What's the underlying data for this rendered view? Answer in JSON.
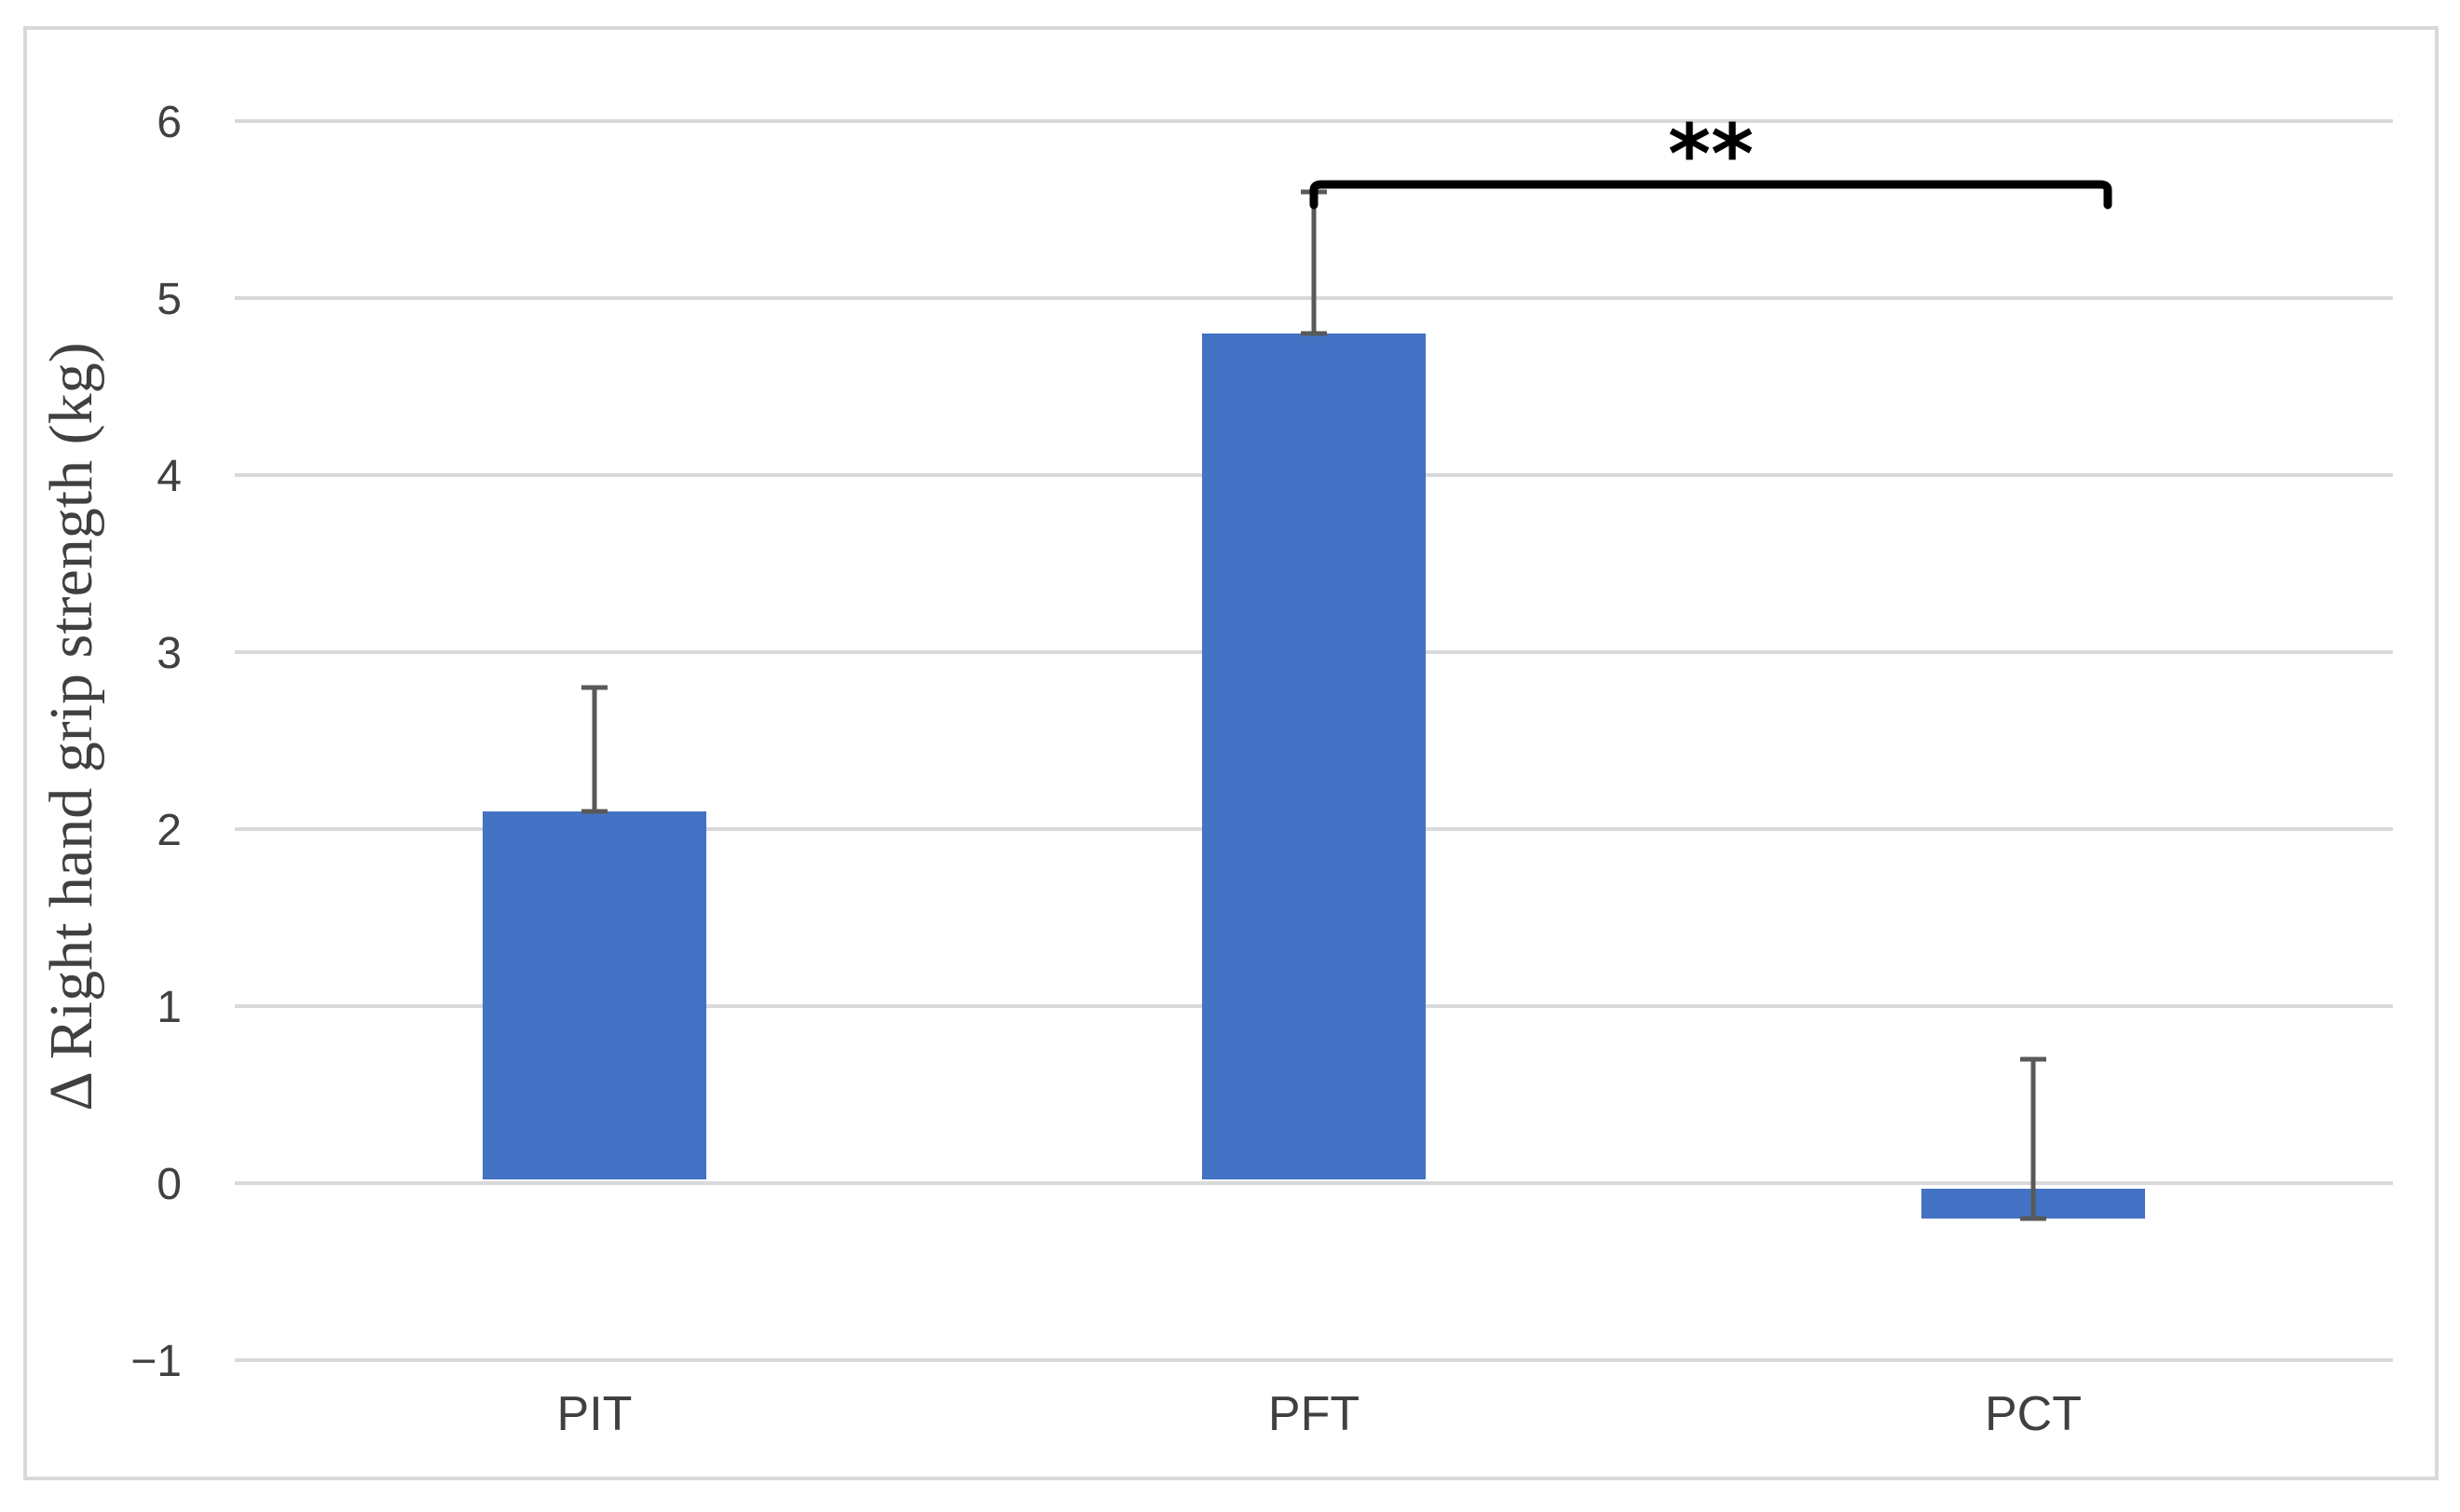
{
  "chart_data": {
    "type": "bar",
    "categories": [
      "PIT",
      "PFT",
      "PCT"
    ],
    "values": [
      2.1,
      4.8,
      -0.2
    ],
    "error_bars": [
      0.7,
      0.8,
      0.9
    ],
    "title": "",
    "xlabel": "",
    "ylabel": "Δ  Right hand grip strength (kg)",
    "ylim": [
      -1,
      6
    ],
    "yticks": [
      -1,
      0,
      1,
      2,
      3,
      4,
      5,
      6
    ],
    "ytick_labels": [
      "−1",
      "0",
      "1",
      "2",
      "3",
      "4",
      "5",
      "6"
    ],
    "grid": true,
    "legend": "none",
    "annotations": [
      {
        "text": "**",
        "from_category": "PFT",
        "to_category": "PCT",
        "bracket_y": 5.8
      }
    ]
  },
  "colors": {
    "bar": "#4472c4",
    "grid": "#d9d9d9",
    "error_bar": "#595959",
    "bracket": "#000000",
    "frame": "#d9d9d9"
  }
}
